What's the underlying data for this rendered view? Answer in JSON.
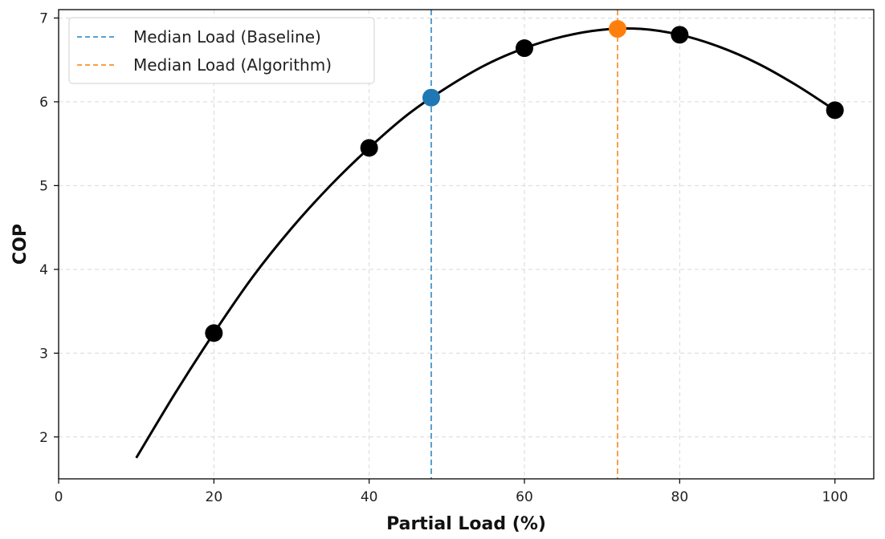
{
  "chart_data": {
    "type": "line",
    "title": "",
    "xlabel": "Partial Load (%)",
    "ylabel": "COP",
    "xlim": [
      0,
      105
    ],
    "ylim": [
      1.5,
      7.1
    ],
    "xticks": [
      0,
      20,
      40,
      60,
      80,
      100
    ],
    "yticks": [
      2,
      3,
      4,
      5,
      6,
      7
    ],
    "grid": true,
    "legend_position": "top-left",
    "curve": {
      "color": "#000000",
      "x": [
        10,
        15,
        20,
        25,
        30,
        35,
        40,
        45,
        50,
        55,
        60,
        65,
        70,
        75,
        80,
        85,
        90,
        95,
        100
      ],
      "y": [
        1.75,
        2.52,
        3.24,
        3.91,
        4.49,
        5.0,
        5.45,
        5.85,
        6.17,
        6.44,
        6.64,
        6.78,
        6.86,
        6.87,
        6.8,
        6.66,
        6.46,
        6.2,
        5.9
      ]
    },
    "points": {
      "color": "#000000",
      "x": [
        20,
        40,
        60,
        80,
        100
      ],
      "y": [
        3.24,
        5.45,
        6.64,
        6.8,
        5.9
      ]
    },
    "series": [
      {
        "name": "Median Load (Baseline)",
        "x": 48,
        "y": 6.05,
        "color": "#1f77b4",
        "line_color": "#5a9fd0",
        "style": "dashed"
      },
      {
        "name": "Median Load (Algorithm)",
        "x": 72,
        "y": 6.87,
        "color": "#ff7f0e",
        "line_color": "#f5a24a",
        "style": "dashed"
      }
    ]
  }
}
